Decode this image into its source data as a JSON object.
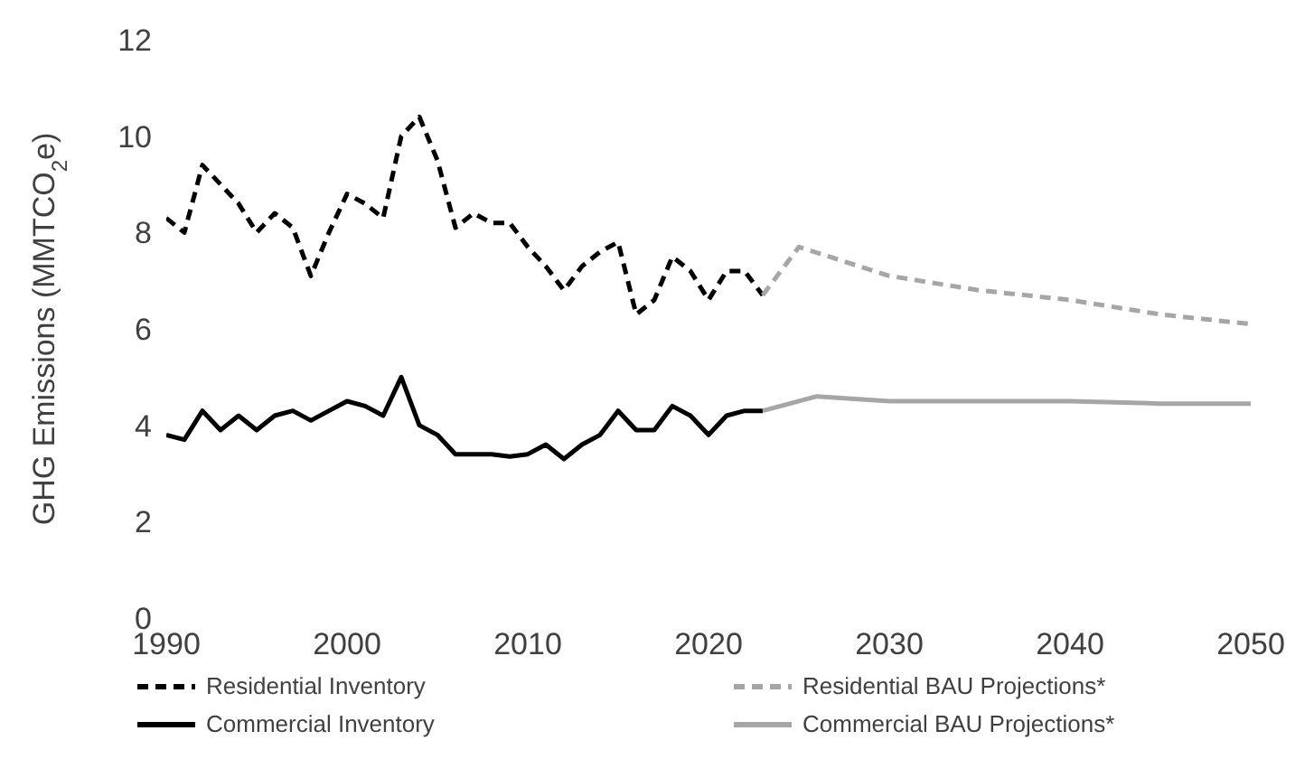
{
  "chart_data": {
    "type": "line",
    "ylabel": "GHG Emissions (MMTCO$_{2}$e)",
    "xlim": [
      1990,
      2050
    ],
    "xticks": [
      1990,
      2000,
      2010,
      2020,
      2030,
      2040,
      2050
    ],
    "ylim": [
      0,
      12
    ],
    "yticks": [
      0,
      2,
      4,
      6,
      8,
      10,
      12
    ],
    "grid": false,
    "legend": "bottom",
    "marker": "none",
    "series": [
      {
        "name": "Residential Inventory",
        "color": "#000000",
        "line_style": "dashed",
        "x": [
          1990,
          1991,
          1992,
          1993,
          1994,
          1995,
          1996,
          1997,
          1998,
          1999,
          2000,
          2001,
          2002,
          2003,
          2004,
          2005,
          2006,
          2007,
          2008,
          2009,
          2010,
          2011,
          2012,
          2013,
          2014,
          2015,
          2016,
          2017,
          2018,
          2019,
          2020,
          2021,
          2022,
          2023
        ],
        "values": [
          8.3,
          8.0,
          9.4,
          9.0,
          8.6,
          8.0,
          8.4,
          8.1,
          7.1,
          8.0,
          8.8,
          8.6,
          8.3,
          10.0,
          10.4,
          9.5,
          8.1,
          8.4,
          8.2,
          8.2,
          7.7,
          7.3,
          6.8,
          7.3,
          7.6,
          7.8,
          6.3,
          6.6,
          7.5,
          7.2,
          6.6,
          7.2,
          7.2,
          6.7
        ]
      },
      {
        "name": "Residential BAU Projections*",
        "color": "#a6a6a6",
        "line_style": "dashed",
        "x": [
          2023,
          2025,
          2030,
          2035,
          2040,
          2045,
          2050
        ],
        "values": [
          6.7,
          7.7,
          7.1,
          6.8,
          6.6,
          6.3,
          6.1
        ]
      },
      {
        "name": "Commercial Inventory",
        "color": "#000000",
        "line_style": "solid",
        "x": [
          1990,
          1991,
          1992,
          1993,
          1994,
          1995,
          1996,
          1997,
          1998,
          1999,
          2000,
          2001,
          2002,
          2003,
          2004,
          2005,
          2006,
          2007,
          2008,
          2009,
          2010,
          2011,
          2012,
          2013,
          2014,
          2015,
          2016,
          2017,
          2018,
          2019,
          2020,
          2021,
          2022,
          2023
        ],
        "values": [
          3.8,
          3.7,
          4.3,
          3.9,
          4.2,
          3.9,
          4.2,
          4.3,
          4.1,
          4.3,
          4.5,
          4.4,
          4.2,
          5.0,
          4.0,
          3.8,
          3.4,
          3.4,
          3.4,
          3.35,
          3.4,
          3.6,
          3.3,
          3.6,
          3.8,
          4.3,
          3.9,
          3.9,
          4.4,
          4.2,
          3.8,
          4.2,
          4.3,
          4.3
        ]
      },
      {
        "name": "Commercial BAU Projections*",
        "color": "#a6a6a6",
        "line_style": "solid",
        "x": [
          2023,
          2026,
          2030,
          2035,
          2040,
          2045,
          2050
        ],
        "values": [
          4.3,
          4.6,
          4.5,
          4.5,
          4.5,
          4.45,
          4.45
        ]
      }
    ]
  }
}
